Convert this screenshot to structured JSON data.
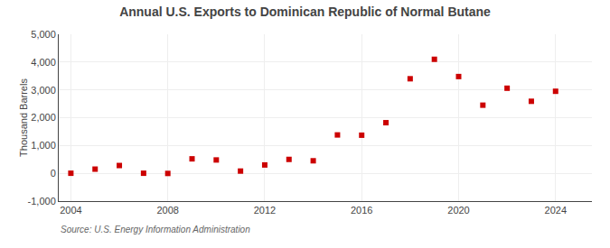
{
  "chart_data": {
    "type": "scatter",
    "title": "Annual U.S. Exports to Dominican Republic of Normal Butane",
    "ylabel": "Thousand Barrels",
    "source": "Source: U.S. Energy Information Administration",
    "x": [
      2004,
      2005,
      2006,
      2007,
      2008,
      2009,
      2010,
      2011,
      2012,
      2013,
      2014,
      2015,
      2016,
      2017,
      2018,
      2019,
      2020,
      2021,
      2022,
      2023,
      2024
    ],
    "values": [
      2,
      150,
      280,
      2,
      -5,
      520,
      480,
      80,
      300,
      500,
      450,
      1380,
      1370,
      1820,
      3400,
      4100,
      3480,
      2450,
      3060,
      2590,
      2950
    ],
    "color": "#cc0000",
    "marker": "square",
    "xlim": [
      2003.5,
      2025.5
    ],
    "xticks": [
      2004,
      2008,
      2012,
      2016,
      2020,
      2024
    ],
    "ylim": [
      -1000,
      5000
    ],
    "yticks": [
      {
        "value": -1000,
        "label": "-1,000"
      },
      0,
      {
        "value": 1000,
        "label": "1,000"
      },
      {
        "value": 2000,
        "label": "2,000"
      },
      {
        "value": 3000,
        "label": "3,000"
      },
      {
        "value": 4000,
        "label": "4,000"
      },
      {
        "value": 5000,
        "label": "5,000"
      }
    ],
    "grid": true
  }
}
